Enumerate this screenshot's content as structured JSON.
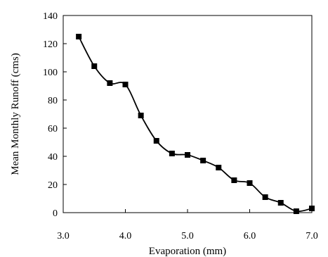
{
  "chart_data": {
    "type": "line",
    "title": "",
    "xlabel": "Evaporation (mm)",
    "ylabel": "Mean Monthly Runoff (cms)",
    "xlim": [
      3.0,
      7.0
    ],
    "ylim": [
      0,
      140
    ],
    "x_ticks": [
      3.0,
      4.0,
      5.0,
      6.0,
      7.0
    ],
    "x_tick_labels": [
      "3.0",
      "4.0",
      "5.0",
      "6.0",
      "7.0"
    ],
    "y_ticks": [
      0,
      20,
      40,
      60,
      80,
      100,
      120,
      140
    ],
    "y_tick_labels": [
      "0",
      "20",
      "40",
      "60",
      "80",
      "100",
      "120",
      "140"
    ],
    "grid": false,
    "legend": "none",
    "marker": "square",
    "line_style": "smooth",
    "color": "#000000",
    "series": [
      {
        "x": [
          3.25,
          3.5,
          3.75,
          4.0,
          4.25,
          4.5,
          4.75,
          5.0,
          5.25,
          5.5,
          5.75,
          6.0,
          6.25,
          6.5,
          6.75,
          7.0
        ],
        "y": [
          125,
          104,
          92,
          91,
          69,
          51,
          42,
          41,
          37,
          32,
          23,
          21,
          11,
          7,
          1,
          3
        ]
      }
    ]
  }
}
